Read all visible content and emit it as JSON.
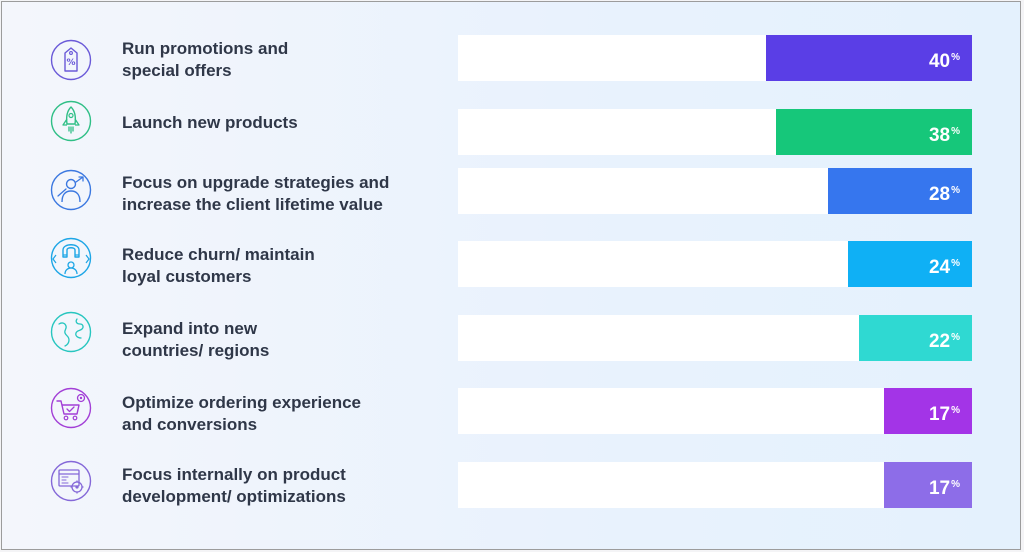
{
  "chart_data": {
    "type": "bar",
    "orientation": "horizontal",
    "xlim": [
      0,
      100
    ],
    "bars": [
      {
        "category": "Run promotions and special offers",
        "lines": [
          "Run promotions and",
          "special offers"
        ],
        "value": 40,
        "unit": "%",
        "color": "#5a3ee6",
        "icon": "discount-tag-icon",
        "icon_color": "#6a5ad8"
      },
      {
        "category": "Launch new products",
        "lines": [
          "Launch new products"
        ],
        "value": 38,
        "unit": "%",
        "color": "#16c77a",
        "icon": "rocket-icon",
        "icon_color": "#2fbf86"
      },
      {
        "category": "Focus on upgrade strategies and increase the client lifetime value",
        "lines": [
          "Focus on upgrade strategies and",
          "increase the client lifetime value"
        ],
        "value": 28,
        "unit": "%",
        "color": "#3676ee",
        "icon": "person-growth-icon",
        "icon_color": "#3b78e0"
      },
      {
        "category": "Reduce churn/ maintain loyal customers",
        "lines": [
          "Reduce churn/ maintain",
          "loyal customers"
        ],
        "value": 24,
        "unit": "%",
        "color": "#0fb0f5",
        "icon": "magnet-icon",
        "icon_color": "#1da6e6"
      },
      {
        "category": "Expand into new countries/ regions",
        "lines": [
          "Expand into new",
          "countries/ regions"
        ],
        "value": 22,
        "unit": "%",
        "color": "#2fd9d2",
        "icon": "globe-icon",
        "icon_color": "#27c6bf"
      },
      {
        "category": "Optimize ordering experience and conversions",
        "lines": [
          "Optimize ordering experience",
          "and conversions"
        ],
        "value": 17,
        "unit": "%",
        "color": "#a334e7",
        "icon": "cart-gear-icon",
        "icon_color": "#a23fd6"
      },
      {
        "category": "Focus internally on product development/ optimizations",
        "lines": [
          "Focus internally on product",
          "development/ optimizations"
        ],
        "value": 17,
        "unit": "%",
        "color": "#8d6de8",
        "icon": "dashboard-gear-icon",
        "icon_color": "#8468d8"
      }
    ]
  }
}
